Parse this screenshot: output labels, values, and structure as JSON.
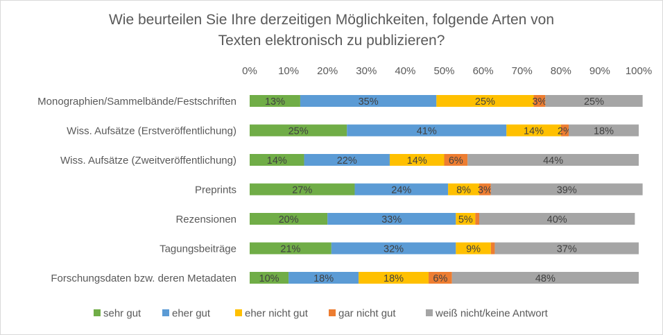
{
  "chart_data": {
    "type": "bar",
    "orientation": "horizontal",
    "stacked": "percent",
    "title_lines": [
      "Wie beurteilen Sie Ihre derzeitigen Möglichkeiten, folgende Arten von",
      "Texten elektronisch zu publizieren?"
    ],
    "xlim": [
      0,
      100
    ],
    "x_ticks": [
      "0%",
      "10%",
      "20%",
      "30%",
      "40%",
      "50%",
      "60%",
      "70%",
      "80%",
      "90%",
      "100%"
    ],
    "x_axis_position": "top",
    "grid": false,
    "legend_position": "bottom",
    "categories": [
      "Monographien/Sammelbände/Festschriften",
      "Wiss. Aufsätze (Erstveröffentlichung)",
      "Wiss. Aufsätze (Zweitveröffentlichung)",
      "Preprints",
      "Rezensionen",
      "Tagungsbeiträge",
      "Forschungsdaten bzw. deren Metadaten"
    ],
    "series": [
      {
        "name": "sehr gut",
        "color": "#70ad47",
        "values": [
          13,
          25,
          14,
          27,
          20,
          21,
          10
        ],
        "labels": [
          "13%",
          "25%",
          "14%",
          "27%",
          "20%",
          "21%",
          "10%"
        ]
      },
      {
        "name": "eher gut",
        "color": "#5b9bd5",
        "values": [
          35,
          41,
          22,
          24,
          33,
          32,
          18
        ],
        "labels": [
          "35%",
          "41%",
          "22%",
          "24%",
          "33%",
          "32%",
          "18%"
        ]
      },
      {
        "name": "eher nicht gut",
        "color": "#ffc000",
        "values": [
          25,
          14,
          14,
          8,
          5,
          9,
          18
        ],
        "labels": [
          "25%",
          "14%",
          "14%",
          "8%",
          "5%",
          "9%",
          "18%"
        ]
      },
      {
        "name": "gar nicht gut",
        "color": "#ed7d31",
        "values": [
          3,
          2,
          6,
          3,
          1,
          1,
          6
        ],
        "labels": [
          "3%",
          "2%",
          "6%",
          "3%",
          "",
          "",
          "6%"
        ]
      },
      {
        "name": "weiß nicht/keine Antwort",
        "color": "#a5a5a5",
        "values": [
          25,
          18,
          44,
          39,
          40,
          37,
          48
        ],
        "labels": [
          "25%",
          "18%",
          "44%",
          "39%",
          "40%",
          "37%",
          "48%"
        ]
      }
    ]
  }
}
